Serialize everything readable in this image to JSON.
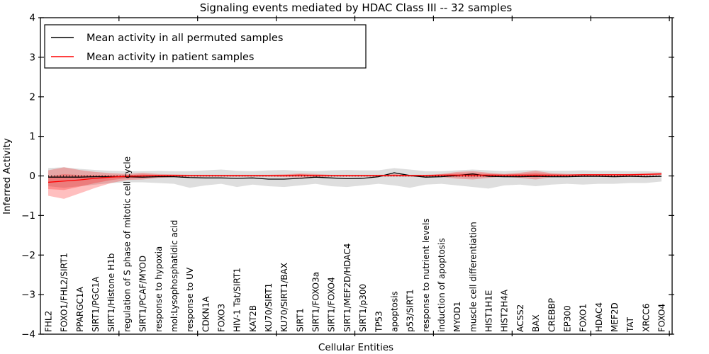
{
  "figure": {
    "title": "Signaling events mediated by HDAC Class III -- 32 samples",
    "xlabel": "Cellular Entities",
    "ylabel": "Inferred Activity"
  },
  "legend": {
    "position": "upper left",
    "entries": [
      {
        "label": "Mean activity in all permuted samples",
        "color": "#000000"
      },
      {
        "label": "Mean activity in patient samples",
        "color": "#ff0000"
      }
    ]
  },
  "chart_data": {
    "type": "line",
    "title": "Signaling events mediated by HDAC Class III -- 32 samples",
    "xlabel": "Cellular Entities",
    "ylabel": "Inferred Activity",
    "ylim": [
      -4,
      4
    ],
    "yticks": [
      -4,
      -3,
      -2,
      -1,
      0,
      1,
      2,
      3,
      4
    ],
    "xtick_step": 5,
    "grid": false,
    "legend_position": "upper left",
    "zero_line": {
      "y": 0,
      "style": "dotted",
      "color": "#000000"
    },
    "categories": [
      "FHL2",
      "FOXO1/FHL2/SIRT1",
      "PPARGC1A",
      "SIRT1/PGC1A",
      "SIRT1/Histone H1b",
      "regulation of S phase of mitotic cell cycle",
      "SIRT1/PCAF/MYOD",
      "response to hypoxia",
      "mol:Lysophosphatidic acid",
      "response to UV",
      "CDKN1A",
      "FOXO3",
      "HIV-1 Tat/SIRT1",
      "KAT2B",
      "KU70/SIRT1",
      "KU70/SIRT1/BAX",
      "SIRT1",
      "SIRT1/FOXO3a",
      "SIRT1/FOXO4",
      "SIRT1/MEF2D/HDAC4",
      "SIRT1/p300",
      "TP53",
      "apoptosis",
      "p53/SIRT1",
      "response to nutrient levels",
      "induction of apoptosis",
      "MYOD1",
      "muscle cell differentiation",
      "HIST1H1E",
      "HIST2H4A",
      "ACSS2",
      "BAX",
      "CREBBP",
      "EP300",
      "FOXO1",
      "HDAC4",
      "MEF2D",
      "TAT",
      "XRCC6",
      "FOXO4"
    ],
    "series": [
      {
        "name": "Mean activity in all permuted samples",
        "color": "#000000",
        "band_color": "#000000",
        "band_opacity": 0.13,
        "mean": [
          -0.03,
          -0.03,
          -0.03,
          -0.02,
          -0.02,
          -0.02,
          -0.03,
          -0.02,
          -0.02,
          -0.04,
          -0.05,
          -0.05,
          -0.06,
          -0.05,
          -0.08,
          -0.08,
          -0.06,
          -0.03,
          -0.05,
          -0.07,
          -0.06,
          -0.02,
          0.08,
          0.01,
          -0.03,
          -0.02,
          0.01,
          0.05,
          -0.01,
          -0.02,
          -0.02,
          -0.01,
          -0.02,
          -0.02,
          -0.01,
          -0.01,
          -0.02,
          -0.01,
          -0.02,
          -0.01
        ],
        "upper": [
          0.2,
          0.22,
          0.18,
          0.15,
          0.13,
          0.12,
          0.12,
          0.13,
          0.12,
          0.12,
          0.14,
          0.16,
          0.13,
          0.12,
          0.14,
          0.15,
          0.13,
          0.12,
          0.14,
          0.15,
          0.14,
          0.14,
          0.2,
          0.16,
          0.12,
          0.12,
          0.14,
          0.16,
          0.14,
          0.12,
          0.14,
          0.15,
          0.13,
          0.13,
          0.14,
          0.13,
          0.13,
          0.12,
          0.12,
          0.1
        ],
        "lower": [
          -0.26,
          -0.3,
          -0.26,
          -0.22,
          -0.18,
          -0.16,
          -0.16,
          -0.18,
          -0.2,
          -0.3,
          -0.24,
          -0.2,
          -0.28,
          -0.22,
          -0.26,
          -0.28,
          -0.24,
          -0.2,
          -0.26,
          -0.28,
          -0.24,
          -0.2,
          -0.24,
          -0.3,
          -0.22,
          -0.2,
          -0.24,
          -0.28,
          -0.32,
          -0.24,
          -0.22,
          -0.26,
          -0.22,
          -0.2,
          -0.22,
          -0.2,
          -0.2,
          -0.18,
          -0.18,
          -0.14
        ]
      },
      {
        "name": "Mean activity in patient samples",
        "color": "#ff0000",
        "band_color": "#ff0000",
        "band_opacity": 0.25,
        "mean": [
          -0.16,
          -0.13,
          -0.1,
          -0.06,
          -0.03,
          -0.01,
          0.0,
          0.01,
          0.01,
          0.01,
          0.01,
          0.01,
          0.01,
          0.01,
          0.01,
          0.01,
          0.02,
          0.01,
          0.01,
          0.01,
          0.01,
          0.01,
          0.02,
          0.01,
          0.01,
          0.02,
          0.02,
          0.02,
          0.02,
          0.02,
          0.02,
          0.02,
          0.02,
          0.02,
          0.03,
          0.03,
          0.03,
          0.03,
          0.04,
          0.05
        ],
        "upper": [
          0.14,
          0.22,
          0.15,
          0.1,
          0.07,
          0.05,
          0.08,
          0.05,
          0.04,
          0.03,
          0.03,
          0.03,
          0.03,
          0.03,
          0.03,
          0.04,
          0.06,
          0.05,
          0.03,
          0.03,
          0.03,
          0.03,
          0.04,
          0.03,
          0.03,
          0.05,
          0.1,
          0.12,
          0.08,
          0.05,
          0.08,
          0.13,
          0.07,
          0.05,
          0.04,
          0.04,
          0.04,
          0.05,
          0.06,
          0.08
        ],
        "lower": [
          -0.5,
          -0.58,
          -0.44,
          -0.3,
          -0.18,
          -0.1,
          -0.09,
          -0.05,
          -0.03,
          -0.02,
          -0.02,
          -0.02,
          -0.02,
          -0.02,
          -0.02,
          -0.03,
          -0.04,
          -0.03,
          -0.02,
          -0.02,
          -0.02,
          -0.02,
          -0.02,
          -0.02,
          -0.02,
          -0.03,
          -0.07,
          -0.09,
          -0.05,
          -0.02,
          -0.05,
          -0.09,
          -0.03,
          -0.01,
          -0.01,
          -0.01,
          -0.01,
          -0.01,
          0.0,
          0.02
        ]
      }
    ]
  },
  "colors": {
    "frame": "#000000",
    "background": "#ffffff",
    "permuted_line": "#000000",
    "patient_line": "#ff0000"
  }
}
